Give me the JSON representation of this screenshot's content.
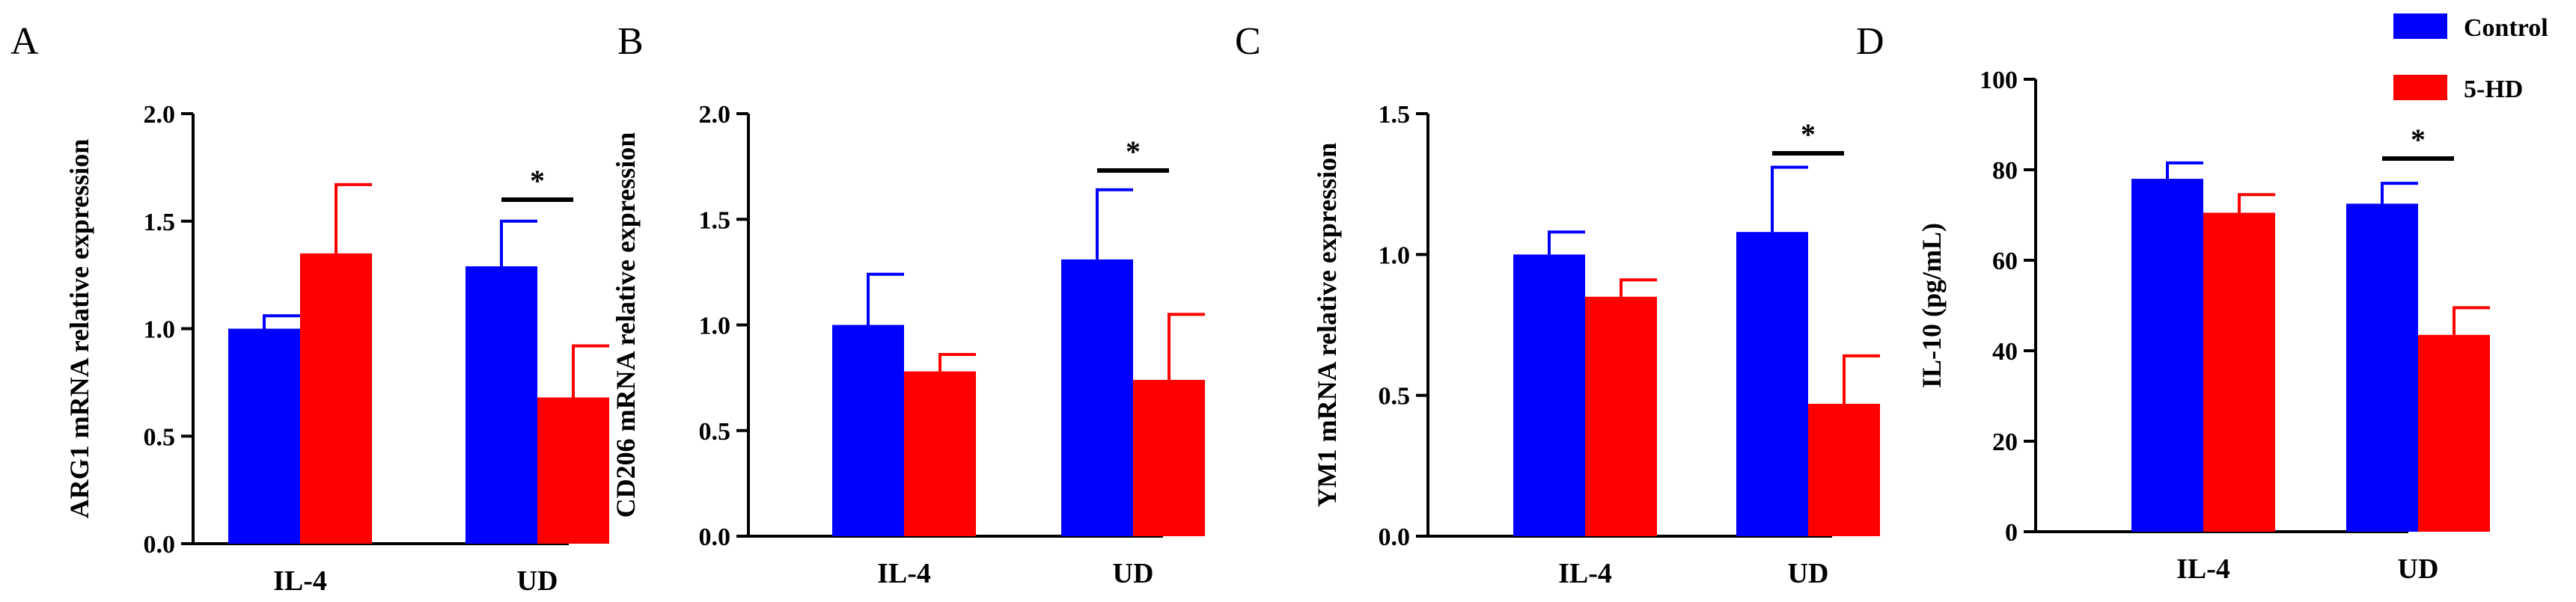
{
  "legend": [
    {
      "name": "Control",
      "color": "#0000ff"
    },
    {
      "name": "5-HD",
      "color": "#ff0000"
    }
  ],
  "chart_data": [
    {
      "type": "bar",
      "panel": "A",
      "categories": [
        "IL-4",
        "UD"
      ],
      "series": [
        {
          "name": "Control",
          "values": [
            1.0,
            1.29
          ],
          "errors": [
            0.06,
            0.21
          ]
        },
        {
          "name": "5-HD",
          "values": [
            1.35,
            0.68
          ],
          "errors": [
            0.32,
            0.24
          ]
        }
      ],
      "ylabel": "ARG1 mRNA relative expression",
      "ylim": [
        0,
        2.0
      ],
      "yticks": [
        0.0,
        0.5,
        1.0,
        1.5,
        2.0
      ],
      "ytick_labels": [
        "0.0",
        "0.5",
        "1.0",
        "1.5",
        "2.0"
      ],
      "significance": [
        {
          "category": "UD",
          "label": "*"
        }
      ]
    },
    {
      "type": "bar",
      "panel": "B",
      "categories": [
        "IL-4",
        "UD"
      ],
      "series": [
        {
          "name": "Control",
          "values": [
            1.0,
            1.31
          ],
          "errors": [
            0.24,
            0.33
          ]
        },
        {
          "name": "5-HD",
          "values": [
            0.78,
            0.74
          ],
          "errors": [
            0.08,
            0.31
          ]
        }
      ],
      "ylabel": "CD206 mRNA relative expression",
      "ylim": [
        0,
        2.0
      ],
      "yticks": [
        0.0,
        0.5,
        1.0,
        1.5,
        2.0
      ],
      "ytick_labels": [
        "0.0",
        "0.5",
        "1.0",
        "1.5",
        "2.0"
      ],
      "significance": [
        {
          "category": "UD",
          "label": "*"
        }
      ]
    },
    {
      "type": "bar",
      "panel": "C",
      "categories": [
        "IL-4",
        "UD"
      ],
      "series": [
        {
          "name": "Control",
          "values": [
            1.0,
            1.08
          ],
          "errors": [
            0.08,
            0.23
          ]
        },
        {
          "name": "5-HD",
          "values": [
            0.85,
            0.47
          ],
          "errors": [
            0.06,
            0.17
          ]
        }
      ],
      "ylabel": "YM1 mRNA relative expression",
      "ylim": [
        0,
        1.5
      ],
      "yticks": [
        0.0,
        0.5,
        1.0,
        1.5
      ],
      "ytick_labels": [
        "0.0",
        "0.5",
        "1.0",
        "1.5"
      ],
      "significance": [
        {
          "category": "UD",
          "label": "*"
        }
      ]
    },
    {
      "type": "bar",
      "panel": "D",
      "categories": [
        "IL-4",
        "UD"
      ],
      "series": [
        {
          "name": "Control",
          "values": [
            78,
            72.5
          ],
          "errors": [
            3.5,
            4.5
          ]
        },
        {
          "name": "5-HD",
          "values": [
            70.5,
            43.5
          ],
          "errors": [
            4,
            6
          ]
        }
      ],
      "ylabel": "IL-10 (pg/mL)",
      "ylim": [
        0,
        100
      ],
      "yticks": [
        0,
        20,
        40,
        60,
        80,
        100
      ],
      "ytick_labels": [
        "0",
        "20",
        "40",
        "60",
        "80",
        "100"
      ],
      "significance": [
        {
          "category": "UD",
          "label": "*"
        }
      ]
    }
  ]
}
